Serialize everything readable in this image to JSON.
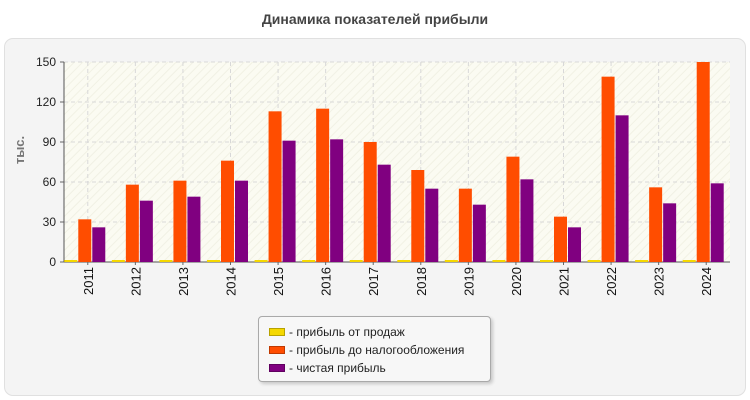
{
  "chart_data": {
    "type": "bar",
    "title": "Динамика показателей прибыли",
    "ylabel": "тыс.",
    "xlabel": "",
    "ylim": [
      0,
      150
    ],
    "yticks": [
      0,
      30,
      60,
      90,
      120,
      150
    ],
    "grid": true,
    "legend_position": "bottom-center",
    "categories": [
      "2011",
      "2012",
      "2013",
      "2014",
      "2015",
      "2016",
      "2017",
      "2018",
      "2019",
      "2020",
      "2021",
      "2022",
      "2023",
      "2024"
    ],
    "series": [
      {
        "name": "- прибыль от продаж",
        "color": "#f5d800",
        "values": [
          0.5,
          0.5,
          0.5,
          0.5,
          0.5,
          0.5,
          0.5,
          0.5,
          0.5,
          0.5,
          0.5,
          0.5,
          0.5,
          0.5
        ]
      },
      {
        "name": "- прибыль до налогообложения",
        "color": "#ff4d00",
        "values": [
          32,
          58,
          61,
          76,
          113,
          115,
          90,
          69,
          55,
          79,
          34,
          139,
          56,
          150
        ]
      },
      {
        "name": "- чистая прибыль",
        "color": "#800080",
        "values": [
          26,
          46,
          49,
          61,
          91,
          92,
          73,
          55,
          43,
          62,
          26,
          110,
          44,
          59
        ]
      }
    ]
  }
}
